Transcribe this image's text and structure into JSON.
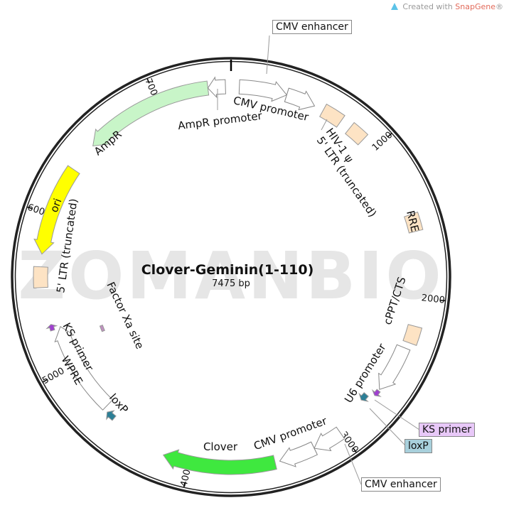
{
  "credit": {
    "prefix": "Created with ",
    "brand": "SnapGene",
    "suffix": "®"
  },
  "watermark": "ZOMANBIO",
  "plasmid": {
    "name": "Clover-Geminin(1-110)",
    "length_label": "7475 bp",
    "length_bp": 7475
  },
  "ticks": [
    {
      "bp": 1000,
      "label": "1000"
    },
    {
      "bp": 2000,
      "label": "2000"
    },
    {
      "bp": 3000,
      "label": "3000"
    },
    {
      "bp": 4000,
      "label": "4000"
    },
    {
      "bp": 5000,
      "label": "5000"
    },
    {
      "bp": 6000,
      "label": "6000"
    },
    {
      "bp": 7000,
      "label": "7000"
    }
  ],
  "features": [
    {
      "id": "cmv-enhancer-1",
      "name": "CMV enhancer",
      "start": 52,
      "end": 353,
      "dir": 1,
      "color": "#ffffff"
    },
    {
      "id": "cmv-promoter-1",
      "name": "CMV promoter",
      "start": 353,
      "end": 540,
      "dir": 1,
      "color": "#ffffff"
    },
    {
      "id": "ltr5-1",
      "name": "5' LTR (truncated)",
      "start": 600,
      "end": 730,
      "dir": 0,
      "color": "#fde3c4"
    },
    {
      "id": "hiv-psi",
      "name": "HIV-1 ψ",
      "start": 800,
      "end": 910,
      "dir": 0,
      "color": "#fde3c4"
    },
    {
      "id": "rre",
      "name": "RRE",
      "start": 1470,
      "end": 1580,
      "dir": 0,
      "color": "#fde3c4"
    },
    {
      "id": "cppt",
      "name": "cPPT/CTS",
      "start": 2180,
      "end": 2290,
      "dir": 0,
      "color": "#fde3c4"
    },
    {
      "id": "u6",
      "name": "U6 promoter",
      "start": 2330,
      "end": 2640,
      "dir": 1,
      "color": "#ffffff"
    },
    {
      "id": "ks-primer-1",
      "name": "KS primer",
      "start": 2650,
      "end": 2690,
      "dir": 1,
      "color": "#a040d0"
    },
    {
      "id": "loxp-1",
      "name": "loxP",
      "start": 2720,
      "end": 2770,
      "dir": 1,
      "color": "#2c7f96"
    },
    {
      "id": "cmv-enhancer-2",
      "name": "CMV enhancer",
      "start": 3010,
      "end": 3200,
      "dir": 1,
      "color": "#ffffff"
    },
    {
      "id": "cmv-promoter-2",
      "name": "CMV promoter",
      "start": 3200,
      "end": 3430,
      "dir": 1,
      "color": "#ffffff"
    },
    {
      "id": "clover",
      "name": "Clover",
      "start": 3460,
      "end": 4170,
      "dir": 1,
      "color": "#3fe83f"
    },
    {
      "id": "loxp-2",
      "name": "loxP",
      "start": 4560,
      "end": 4620,
      "dir": 1,
      "color": "#2c7f96"
    },
    {
      "id": "wpre",
      "name": "WPRE",
      "start": 4650,
      "end": 5270,
      "dir": 1,
      "color": "#ffffff"
    },
    {
      "id": "ks-primer-2",
      "name": "KS primer",
      "start": 5260,
      "end": 5300,
      "dir": 1,
      "color": "#a040d0"
    },
    {
      "id": "factor-xa",
      "name": "Factor Xa site",
      "start": 5130,
      "end": 5180,
      "dir": 0,
      "color": "#c090c0"
    },
    {
      "id": "ltr5-2",
      "name": "5' LTR (truncated)",
      "start": 5540,
      "end": 5670,
      "dir": 0,
      "color": "#fde3c4"
    },
    {
      "id": "ori",
      "name": "ori",
      "start": 5750,
      "end": 6320,
      "dir": -1,
      "color": "#ffff00"
    },
    {
      "id": "ampr",
      "name": "AmpR",
      "start": 6510,
      "end": 7330,
      "dir": -1,
      "color": "#c8f5c8"
    },
    {
      "id": "ampr-promoter",
      "name": "AmpR promoter",
      "start": 7330,
      "end": 7440,
      "dir": -1,
      "color": "#ffffff"
    }
  ],
  "labels": {
    "cmv_promoter_top": "CMV promoter",
    "ampr_promoter": "AmpR promoter",
    "ampr": "AmpR",
    "hiv_psi": "HIV-1 ψ",
    "ltr_right": "5' LTR (truncated)",
    "rre": "RRE",
    "cppt": "cPPT/CTS",
    "u6": "U6 promoter",
    "cmv_promoter_bottom": "CMV promoter",
    "clover": "Clover",
    "loxp_left": "loxP",
    "wpre": "WPRE",
    "ks_left": "KS primer",
    "ltr_left": "5' LTR (truncated)",
    "ori": "ori",
    "factor_xa": "Factor Xa site"
  },
  "callouts": {
    "cmv_enhancer_top": "CMV enhancer",
    "ks_primer": "KS primer",
    "loxp": "loxP",
    "cmv_enhancer_bottom": "CMV enhancer"
  },
  "colors": {
    "ks_callout": "#e8c8f8",
    "loxp_callout": "#a8d0dc"
  }
}
